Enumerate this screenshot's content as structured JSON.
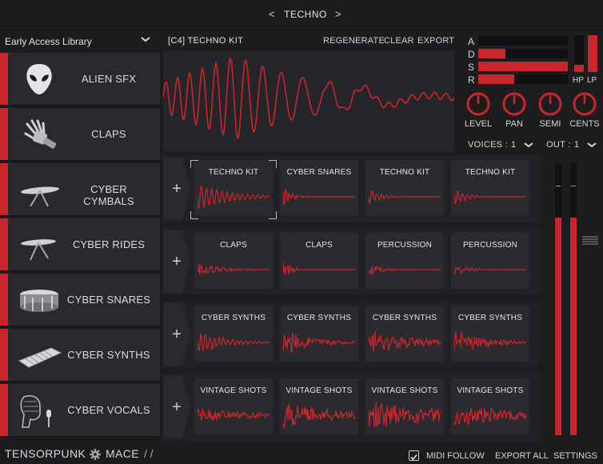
{
  "header": {
    "prev_glyph": "<",
    "preset": "TECHNO",
    "next_glyph": ">"
  },
  "library": {
    "selected": "Early Access Library",
    "chevron_icon": "chevron-down-icon"
  },
  "sidebar": {
    "items": [
      {
        "label": "ALIEN SFX",
        "icon": "alien-head-icon"
      },
      {
        "label": "CLAPS",
        "icon": "robot-hand-icon"
      },
      {
        "label": "CYBER CYMBALS",
        "icon": "cymbal-icon"
      },
      {
        "label": "CYBER RIDES",
        "icon": "ride-cymbal-icon"
      },
      {
        "label": "CYBER SNARES",
        "icon": "snare-drum-icon"
      },
      {
        "label": "CYBER SYNTHS",
        "icon": "keyboard-icon"
      },
      {
        "label": "CYBER VOCALS",
        "icon": "robot-head-mic-icon"
      }
    ]
  },
  "waveform": {
    "kit_name": "[C4] TECHNO KIT",
    "regenerate": "REGENERATE",
    "clear": "CLEAR",
    "export": "EXPORT"
  },
  "envelope": {
    "labels": [
      "A",
      "D",
      "S",
      "R"
    ],
    "levels": [
      0.0,
      0.3,
      1.0,
      0.4
    ],
    "hp_label": "HP",
    "lp_label": "LP",
    "hp_level": 0.2,
    "lp_level": 1.0
  },
  "knobs": [
    {
      "label": "LEVEL"
    },
    {
      "label": "PAN"
    },
    {
      "label": "SEMI"
    },
    {
      "label": "CENTS"
    }
  ],
  "voices": {
    "label": "VOICES :",
    "value": "1"
  },
  "out": {
    "label": "OUT :",
    "value": "1"
  },
  "rows": [
    {
      "pads": [
        "TECHNO KIT",
        "CYBER SNARES",
        "TECHNO KIT",
        "TECHNO KIT"
      ]
    },
    {
      "pads": [
        "CLAPS",
        "CLAPS",
        "PERCUSSION",
        "PERCUSSION"
      ]
    },
    {
      "pads": [
        "CYBER SYNTHS",
        "CYBER SYNTHS",
        "CYBER SYNTHS",
        "CYBER SYNTHS"
      ]
    },
    {
      "pads": [
        "VINTAGE SHOTS",
        "VINTAGE SHOTS",
        "VINTAGE SHOTS",
        "VINTAGE SHOTS"
      ]
    }
  ],
  "add_glyph": "+",
  "meters": {
    "left_level": 0.8,
    "right_level": 0.8
  },
  "footer": {
    "brand": "TENSORPUNK",
    "product": "MACE",
    "slashes": "/ /",
    "midi_follow": "MIDI FOLLOW",
    "midi_checked": true,
    "export_all": "EXPORT ALL",
    "settings": "SETTINGS"
  },
  "colors": {
    "accent": "#c8262c",
    "panel": "#2a2a2e",
    "background": "#1d1d20"
  }
}
